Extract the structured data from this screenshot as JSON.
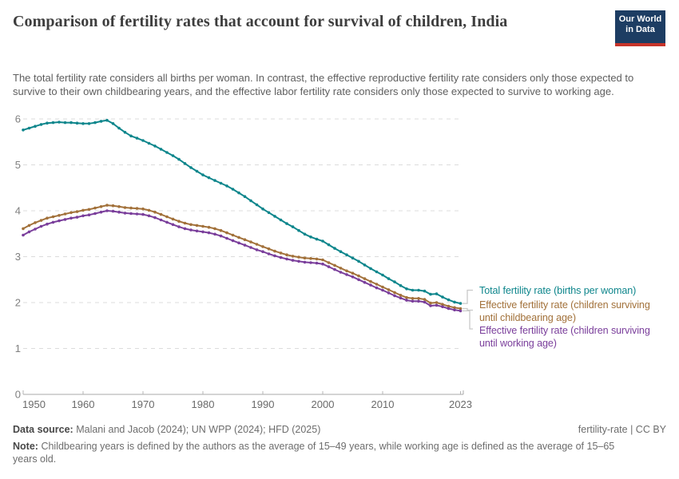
{
  "header": {
    "title": "Comparison of fertility rates that account for survival of children, India",
    "subtitle": "The total fertility rate considers all births per woman. In contrast, the effective reproductive fertility rate considers only those expected to survive to their own childbearing years, and the effective labor fertility rate considers only those expected to survive to working age."
  },
  "logo": {
    "line1": "Our World",
    "line2": "in Data",
    "bg_color": "#1d3d63",
    "stripe_color": "#c7342a"
  },
  "chart_data": {
    "type": "line",
    "title": "Comparison of fertility rates that account for survival of children, India",
    "xlabel": "",
    "ylabel": "",
    "ylim": [
      0,
      6
    ],
    "xlim": [
      1950,
      2025
    ],
    "grid": "horizontal dashed",
    "legend_position": "right of line ends",
    "yticks": [
      0,
      1,
      2,
      3,
      4,
      5,
      6
    ],
    "xticks": [
      1950,
      1960,
      1970,
      1980,
      1990,
      2000,
      2010,
      2023
    ],
    "x": [
      1950,
      1951,
      1952,
      1953,
      1954,
      1955,
      1956,
      1957,
      1958,
      1959,
      1960,
      1961,
      1962,
      1963,
      1964,
      1965,
      1966,
      1967,
      1968,
      1969,
      1970,
      1971,
      1972,
      1973,
      1974,
      1975,
      1976,
      1977,
      1978,
      1979,
      1980,
      1981,
      1982,
      1983,
      1984,
      1985,
      1986,
      1987,
      1988,
      1989,
      1990,
      1991,
      1992,
      1993,
      1994,
      1995,
      1996,
      1997,
      1998,
      1999,
      2000,
      2001,
      2002,
      2003,
      2004,
      2005,
      2006,
      2007,
      2008,
      2009,
      2010,
      2011,
      2012,
      2013,
      2014,
      2015,
      2016,
      2017,
      2018,
      2019,
      2020,
      2021,
      2022,
      2023
    ],
    "series": [
      {
        "name": "Total fertility rate (births per woman)",
        "color": "#0e868c",
        "values": [
          5.76,
          5.8,
          5.84,
          5.88,
          5.91,
          5.92,
          5.93,
          5.92,
          5.92,
          5.91,
          5.9,
          5.9,
          5.92,
          5.95,
          5.97,
          5.9,
          5.8,
          5.71,
          5.63,
          5.58,
          5.53,
          5.47,
          5.41,
          5.34,
          5.27,
          5.2,
          5.12,
          5.03,
          4.94,
          4.86,
          4.78,
          4.72,
          4.66,
          4.6,
          4.54,
          4.47,
          4.39,
          4.31,
          4.22,
          4.13,
          4.04,
          3.96,
          3.88,
          3.8,
          3.72,
          3.65,
          3.57,
          3.49,
          3.43,
          3.38,
          3.34,
          3.26,
          3.18,
          3.11,
          3.04,
          2.97,
          2.9,
          2.82,
          2.74,
          2.67,
          2.6,
          2.52,
          2.45,
          2.37,
          2.3,
          2.27,
          2.27,
          2.25,
          2.18,
          2.19,
          2.12,
          2.06,
          2.01,
          1.98
        ]
      },
      {
        "name": "Effective fertility rate (children surviving until childbearing age)",
        "color": "#a2713a",
        "values": [
          3.61,
          3.68,
          3.74,
          3.79,
          3.84,
          3.87,
          3.9,
          3.93,
          3.96,
          3.98,
          4.01,
          4.03,
          4.06,
          4.09,
          4.12,
          4.11,
          4.09,
          4.07,
          4.06,
          4.05,
          4.04,
          4.01,
          3.97,
          3.92,
          3.87,
          3.82,
          3.77,
          3.73,
          3.7,
          3.68,
          3.66,
          3.64,
          3.61,
          3.57,
          3.52,
          3.47,
          3.42,
          3.37,
          3.32,
          3.27,
          3.22,
          3.17,
          3.12,
          3.08,
          3.04,
          3.01,
          2.99,
          2.97,
          2.96,
          2.95,
          2.93,
          2.87,
          2.81,
          2.75,
          2.69,
          2.64,
          2.58,
          2.52,
          2.46,
          2.4,
          2.34,
          2.28,
          2.22,
          2.16,
          2.11,
          2.09,
          2.09,
          2.07,
          1.99,
          2.0,
          1.96,
          1.92,
          1.89,
          1.87
        ]
      },
      {
        "name": "Effective fertility rate (children surviving until working age)",
        "color": "#7a3e9b",
        "values": [
          3.47,
          3.54,
          3.6,
          3.66,
          3.71,
          3.75,
          3.78,
          3.81,
          3.84,
          3.86,
          3.89,
          3.91,
          3.94,
          3.97,
          4.0,
          3.99,
          3.97,
          3.95,
          3.94,
          3.93,
          3.92,
          3.89,
          3.85,
          3.8,
          3.75,
          3.7,
          3.65,
          3.61,
          3.58,
          3.56,
          3.54,
          3.52,
          3.49,
          3.45,
          3.4,
          3.35,
          3.3,
          3.25,
          3.2,
          3.15,
          3.11,
          3.06,
          3.02,
          2.98,
          2.95,
          2.92,
          2.9,
          2.88,
          2.87,
          2.86,
          2.84,
          2.78,
          2.72,
          2.66,
          2.61,
          2.56,
          2.5,
          2.44,
          2.38,
          2.32,
          2.27,
          2.21,
          2.15,
          2.1,
          2.05,
          2.03,
          2.03,
          2.01,
          1.93,
          1.94,
          1.91,
          1.87,
          1.84,
          1.82
        ]
      }
    ]
  },
  "legend": {
    "entries": [
      {
        "color": "#0e868c",
        "lines": [
          "Total fertility rate (births per woman)",
          ""
        ]
      },
      {
        "color": "#a2713a",
        "lines": [
          "Effective fertility rate (children surviving",
          "until childbearing age)"
        ]
      },
      {
        "color": "#7a3e9b",
        "lines": [
          "Effective fertility rate (children surviving",
          "until working age)"
        ]
      }
    ]
  },
  "footer": {
    "data_source_label": "Data source:",
    "data_source": "Malani and Jacob (2024); UN WPP (2024); HFD (2025)",
    "rights": "fertility-rate | CC BY",
    "note_label": "Note:",
    "note": "Childbearing years is defined by the authors as the average of 15–49 years, while working age is defined as the average of 15–65 years old."
  }
}
